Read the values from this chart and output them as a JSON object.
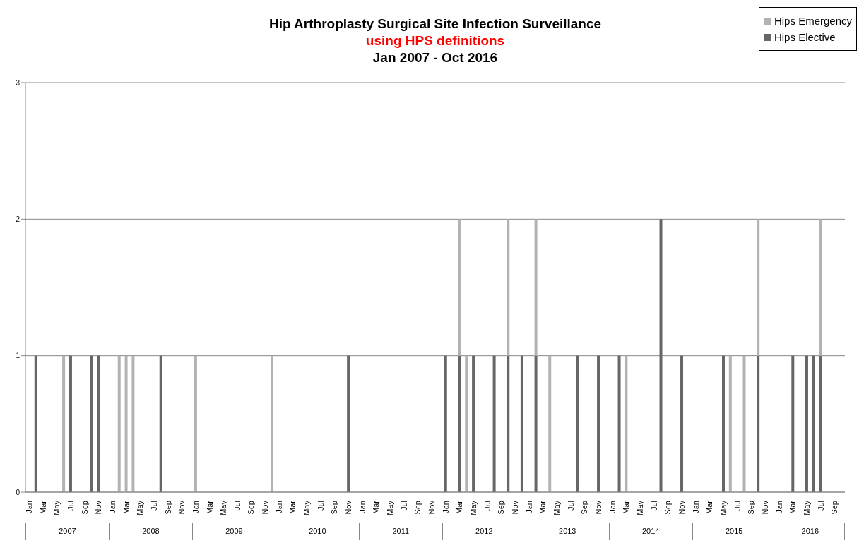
{
  "chart_data": {
    "type": "bar",
    "title": "Hip Arthroplasty Surgical Site Infection Surveillance",
    "subtitle": "using HPS definitions",
    "annotations": [
      "Jan 2007 - Oct 2016",
      "2007",
      "2008",
      "2009",
      "2010",
      "2011",
      "2012",
      "2013",
      "2014",
      "2015",
      "2016"
    ],
    "categories": [
      "Jan",
      null,
      "Mar",
      null,
      "May",
      null,
      "Jul",
      null,
      "Sep",
      null,
      "Nov",
      null,
      "Jan",
      null,
      "Mar",
      null,
      "May",
      null,
      "Jul",
      null,
      "Sep",
      null,
      "Nov",
      null,
      "Jan",
      null,
      "Mar",
      null,
      "May",
      null,
      "Jul",
      null,
      "Sep",
      null,
      "Nov",
      null,
      "Jan",
      null,
      "Mar",
      null,
      "May",
      null,
      "Jul",
      null,
      "Sep",
      null,
      "Nov",
      null,
      "Jan",
      null,
      "Mar",
      null,
      "May",
      null,
      "Jul",
      null,
      "Sep",
      null,
      "Nov",
      null,
      "Jan",
      null,
      "Mar",
      null,
      "May",
      null,
      "Jul",
      null,
      "Sep",
      null,
      "Nov",
      null,
      "Jan",
      null,
      "Mar",
      null,
      "May",
      null,
      "Jul",
      null,
      "Sep",
      null,
      "Nov",
      null,
      "Jan",
      null,
      "Mar",
      null,
      "May",
      null,
      "Jul",
      null,
      "Sep",
      null,
      "Nov",
      null,
      "Jan",
      null,
      "Mar",
      null,
      "May",
      null,
      "Jul",
      null,
      "Sep",
      null,
      "Nov",
      null,
      "Jan",
      null,
      "Mar",
      null,
      "May",
      null,
      "Jul",
      null,
      "Sep",
      null
    ],
    "series": [
      {
        "name": "Hips Elective",
        "color": "#666666",
        "values": [
          0,
          1,
          0,
          0,
          0,
          0,
          1,
          0,
          0,
          1,
          1,
          0,
          0,
          0,
          0,
          0,
          0,
          0,
          0,
          1,
          0,
          0,
          0,
          0,
          0,
          0,
          0,
          0,
          0,
          0,
          0,
          0,
          0,
          0,
          0,
          0,
          0,
          0,
          0,
          0,
          0,
          0,
          0,
          0,
          0,
          0,
          1,
          0,
          0,
          0,
          0,
          0,
          0,
          0,
          0,
          0,
          0,
          0,
          0,
          0,
          1,
          0,
          1,
          0,
          1,
          0,
          0,
          1,
          0,
          1,
          0,
          1,
          0,
          1,
          0,
          0,
          0,
          0,
          0,
          1,
          0,
          0,
          1,
          0,
          0,
          1,
          0,
          0,
          0,
          0,
          0,
          2,
          0,
          0,
          1,
          0,
          0,
          0,
          0,
          0,
          1,
          0,
          0,
          0,
          0,
          1,
          0,
          0,
          0,
          0,
          1,
          0,
          1,
          1,
          1,
          0,
          0,
          0
        ]
      },
      {
        "name": "Hips Emergency",
        "color": "#b2b2b2",
        "values": [
          0,
          0,
          0,
          0,
          0,
          1,
          0,
          0,
          0,
          0,
          0,
          0,
          0,
          1,
          1,
          1,
          0,
          0,
          0,
          0,
          0,
          0,
          0,
          0,
          1,
          0,
          0,
          0,
          0,
          0,
          0,
          0,
          0,
          0,
          0,
          1,
          0,
          0,
          0,
          0,
          0,
          0,
          0,
          0,
          0,
          0,
          0,
          0,
          0,
          0,
          0,
          0,
          0,
          0,
          0,
          0,
          0,
          0,
          0,
          0,
          0,
          0,
          1,
          1,
          0,
          0,
          0,
          0,
          0,
          1,
          0,
          0,
          0,
          1,
          0,
          1,
          0,
          0,
          0,
          0,
          0,
          0,
          0,
          0,
          0,
          0,
          1,
          0,
          0,
          0,
          0,
          0,
          0,
          0,
          0,
          0,
          0,
          0,
          0,
          0,
          0,
          1,
          0,
          1,
          0,
          1,
          0,
          0,
          0,
          0,
          0,
          0,
          0,
          0,
          1,
          0,
          0,
          0
        ]
      }
    ],
    "stacked": true,
    "ylim": [
      0,
      3
    ],
    "yticks": [
      0,
      1,
      2,
      3
    ],
    "grid": "y",
    "legend": "top right"
  }
}
